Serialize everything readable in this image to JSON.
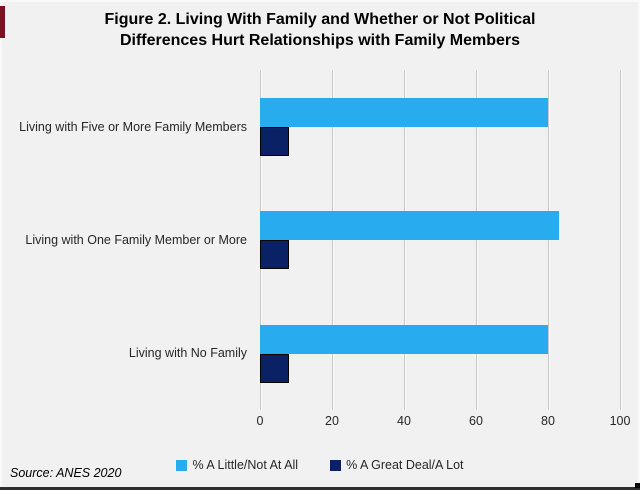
{
  "figure": {
    "title": "Figure 2. Living With Family and Whether or Not Political Differences Hurt Relationships with Family Members",
    "source_note": "Source: ANES 2020"
  },
  "colors": {
    "background": "#F1F1F1",
    "series_light_blue": "#29ABF0",
    "series_navy": "#0A2166",
    "gridline": "#C7C7C7",
    "left_edge_mark": "#7B1123",
    "bottom_rule": "#2E2E2E"
  },
  "chart_data": {
    "type": "bar",
    "orientation": "horizontal",
    "title": "Figure 2. Living With Family and Whether or Not Political Differences Hurt Relationships with Family Members",
    "categories": [
      "Living with Five or More Family Members",
      "Living with One Family Member or More",
      "Living with No Family"
    ],
    "series": [
      {
        "name": "% A Little/Not At All",
        "color": "#29ABF0",
        "values": [
          80,
          83,
          80
        ]
      },
      {
        "name": "% A Great Deal/A Lot",
        "color": "#0A2166",
        "values": [
          8,
          8,
          8
        ]
      }
    ],
    "xlim": [
      0,
      100
    ],
    "xticks": [
      0,
      20,
      40,
      60,
      80,
      100
    ],
    "grid": "vertical-gridlines",
    "legend_position": "bottom",
    "source": "Source: ANES 2020"
  }
}
